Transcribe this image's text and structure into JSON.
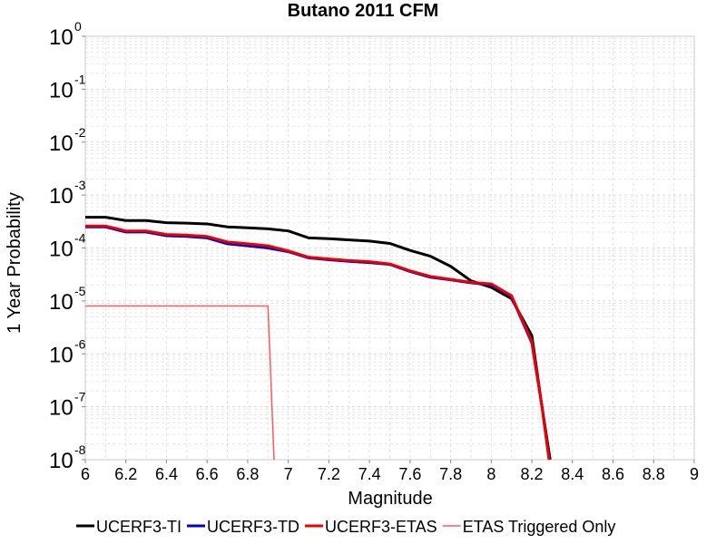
{
  "chart_data": {
    "type": "line",
    "title": "Butano 2011 CFM",
    "xlabel": "Magnitude",
    "ylabel": "1 Year Probability",
    "xlim": [
      6,
      9
    ],
    "ylim": [
      1e-08,
      1
    ],
    "yscale": "log",
    "grid": true,
    "legend_position": "bottom",
    "x_ticks": [
      "6",
      "6.2",
      "6.4",
      "6.6",
      "6.8",
      "7",
      "7.2",
      "7.4",
      "7.6",
      "7.8",
      "8",
      "8.2",
      "8.4",
      "8.6",
      "8.8",
      "9"
    ],
    "y_ticks": [
      {
        "base": "10",
        "exp": "-8"
      },
      {
        "base": "10",
        "exp": "-7"
      },
      {
        "base": "10",
        "exp": "-6"
      },
      {
        "base": "10",
        "exp": "-5"
      },
      {
        "base": "10",
        "exp": "-4"
      },
      {
        "base": "10",
        "exp": "-3"
      },
      {
        "base": "10",
        "exp": "-2"
      },
      {
        "base": "10",
        "exp": "-1"
      },
      {
        "base": "10",
        "exp": "0"
      }
    ],
    "series": [
      {
        "name": "UCERF3-TI",
        "color": "#000000",
        "width": 3,
        "points": [
          [
            6.0,
            0.00038
          ],
          [
            6.1,
            0.00038
          ],
          [
            6.2,
            0.00033
          ],
          [
            6.3,
            0.00033
          ],
          [
            6.4,
            0.0003
          ],
          [
            6.5,
            0.000295
          ],
          [
            6.6,
            0.000285
          ],
          [
            6.7,
            0.00025
          ],
          [
            6.8,
            0.00024
          ],
          [
            6.9,
            0.00023
          ],
          [
            7.0,
            0.00021
          ],
          [
            7.1,
            0.000155
          ],
          [
            7.2,
            0.00015
          ],
          [
            7.3,
            0.000142
          ],
          [
            7.4,
            0.000135
          ],
          [
            7.5,
            0.000122
          ],
          [
            7.6,
            9e-05
          ],
          [
            7.7,
            7e-05
          ],
          [
            7.8,
            4.5e-05
          ],
          [
            7.9,
            2.4e-05
          ],
          [
            8.0,
            1.8e-05
          ],
          [
            8.1,
            1.1e-05
          ],
          [
            8.2,
            2.2e-06
          ],
          [
            8.25,
            1e-07
          ],
          [
            8.29,
            1e-08
          ]
        ]
      },
      {
        "name": "UCERF3-TD",
        "color": "#0000cc",
        "width": 3,
        "points": [
          [
            6.0,
            0.00025
          ],
          [
            6.1,
            0.00025
          ],
          [
            6.2,
            0.0002
          ],
          [
            6.3,
            0.0002
          ],
          [
            6.4,
            0.00017
          ],
          [
            6.5,
            0.000165
          ],
          [
            6.6,
            0.000155
          ],
          [
            6.7,
            0.00012
          ],
          [
            6.8,
            0.00011
          ],
          [
            6.9,
            0.0001
          ],
          [
            7.0,
            8.5e-05
          ],
          [
            7.1,
            6.5e-05
          ],
          [
            7.2,
            6e-05
          ],
          [
            7.3,
            5.6e-05
          ],
          [
            7.4,
            5.3e-05
          ],
          [
            7.5,
            4.9e-05
          ],
          [
            7.6,
            3.6e-05
          ],
          [
            7.7,
            2.8e-05
          ],
          [
            7.8,
            2.5e-05
          ],
          [
            7.9,
            2.2e-05
          ],
          [
            8.0,
            2e-05
          ],
          [
            8.1,
            1.2e-05
          ],
          [
            8.2,
            1.6e-06
          ],
          [
            8.25,
            1e-07
          ],
          [
            8.285,
            1e-08
          ]
        ]
      },
      {
        "name": "UCERF3-ETAS",
        "color": "#ee0000",
        "width": 3,
        "points": [
          [
            6.0,
            0.00026
          ],
          [
            6.1,
            0.00026
          ],
          [
            6.2,
            0.00021
          ],
          [
            6.3,
            0.00021
          ],
          [
            6.4,
            0.00018
          ],
          [
            6.5,
            0.000175
          ],
          [
            6.6,
            0.000165
          ],
          [
            6.7,
            0.00013
          ],
          [
            6.8,
            0.00012
          ],
          [
            6.9,
            0.00011
          ],
          [
            7.0,
            8.8e-05
          ],
          [
            7.1,
            6.7e-05
          ],
          [
            7.2,
            6.2e-05
          ],
          [
            7.3,
            5.8e-05
          ],
          [
            7.4,
            5.5e-05
          ],
          [
            7.5,
            5e-05
          ],
          [
            7.6,
            3.7e-05
          ],
          [
            7.7,
            2.9e-05
          ],
          [
            7.8,
            2.55e-05
          ],
          [
            7.9,
            2.25e-05
          ],
          [
            8.0,
            2.1e-05
          ],
          [
            8.1,
            1.25e-05
          ],
          [
            8.2,
            1.7e-06
          ],
          [
            8.25,
            1e-07
          ],
          [
            8.285,
            1e-08
          ]
        ]
      },
      {
        "name": "ETAS Triggered Only",
        "color": "#ff5a5a",
        "width": 1.5,
        "points": [
          [
            6.0,
            8e-06
          ],
          [
            6.9,
            8e-06
          ],
          [
            6.93,
            1e-08
          ]
        ]
      }
    ]
  }
}
